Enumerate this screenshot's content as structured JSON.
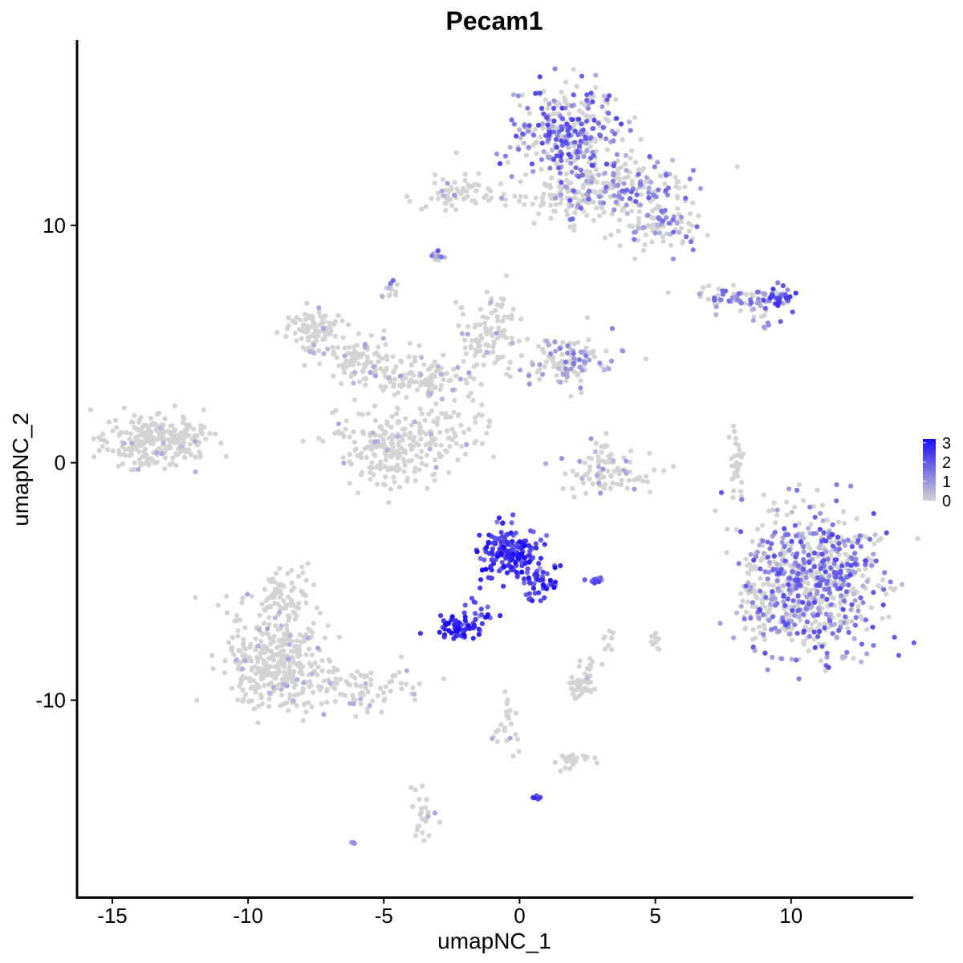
{
  "chart_data": {
    "type": "scatter",
    "title": "Pecam1",
    "xlabel": "umapNC_1",
    "ylabel": "umapNC_2",
    "xlim": [
      -16.3,
      14.5
    ],
    "ylim": [
      -18.3,
      17.8
    ],
    "x_ticks": [
      -15,
      -10,
      -5,
      0,
      5,
      10
    ],
    "x_tick_labels": [
      "-15",
      "-10",
      "-5",
      "0",
      "5",
      "10"
    ],
    "y_ticks": [
      -10,
      0,
      10
    ],
    "y_tick_labels": [
      "-10",
      "0",
      "10"
    ],
    "grid": false,
    "legend_position": "right",
    "color_scale": {
      "low": "#d3d3d3",
      "high": "#1d0cf5",
      "min": 0,
      "max": 3.2,
      "breaks": [
        0,
        1,
        2,
        3
      ],
      "break_labels": [
        "0",
        "1",
        "2",
        "3"
      ]
    },
    "clusters": [
      {
        "id": "left-blob",
        "center": [
          -13.5,
          1.0
        ],
        "spread": [
          0.9,
          0.6
        ],
        "n": 260,
        "expr": 0.02
      },
      {
        "id": "top-cluster",
        "center": [
          1.7,
          13.9
        ],
        "spread": [
          1.0,
          1.0
        ],
        "n": 320,
        "expr": 0.9
      },
      {
        "id": "top-arm-right",
        "center": [
          3.8,
          11.6
        ],
        "spread": [
          1.2,
          0.7
        ],
        "n": 180,
        "expr": 0.7
      },
      {
        "id": "top-arm-lower-right",
        "center": [
          5.2,
          10.0
        ],
        "spread": [
          0.7,
          0.5
        ],
        "n": 90,
        "expr": 0.55
      },
      {
        "id": "top-stem",
        "center": [
          1.9,
          11.1
        ],
        "spread": [
          0.6,
          0.5
        ],
        "n": 60,
        "expr": 0.15
      },
      {
        "id": "top-left-streak",
        "center": [
          -2.3,
          11.4
        ],
        "spread": [
          0.7,
          0.3
        ],
        "n": 60,
        "expr": 0.15
      },
      {
        "id": "top-left-tail",
        "center": [
          0.3,
          11.1
        ],
        "spread": [
          0.6,
          0.15
        ],
        "n": 18,
        "expr": 0.05
      },
      {
        "id": "small-islet-1",
        "center": [
          -3.0,
          8.7
        ],
        "spread": [
          0.15,
          0.12
        ],
        "n": 12,
        "expr": 0.8
      },
      {
        "id": "small-islet-2",
        "center": [
          -4.7,
          7.3
        ],
        "spread": [
          0.15,
          0.2
        ],
        "n": 14,
        "expr": 0.7
      },
      {
        "id": "right-streak",
        "center": [
          8.3,
          6.9
        ],
        "spread": [
          0.9,
          0.22
        ],
        "n": 70,
        "expr": 0.6
      },
      {
        "id": "right-streak-head",
        "center": [
          9.5,
          6.9
        ],
        "spread": [
          0.3,
          0.25
        ],
        "n": 40,
        "expr": 1.2
      },
      {
        "id": "right-streak-drop",
        "center": [
          8.9,
          6.0
        ],
        "spread": [
          0.25,
          0.2
        ],
        "n": 12,
        "expr": 0.7
      },
      {
        "id": "mid-left-top",
        "center": [
          -7.5,
          5.6
        ],
        "spread": [
          0.6,
          0.4
        ],
        "n": 90,
        "expr": 0.05
      },
      {
        "id": "mid-branch-left",
        "center": [
          -5.8,
          4.3
        ],
        "spread": [
          0.8,
          0.5
        ],
        "n": 80,
        "expr": 0.08
      },
      {
        "id": "mid-hub",
        "center": [
          -3.5,
          3.6
        ],
        "spread": [
          1.0,
          0.6
        ],
        "n": 120,
        "expr": 0.1
      },
      {
        "id": "mid-top-spike",
        "center": [
          -1.1,
          5.5
        ],
        "spread": [
          0.6,
          0.8
        ],
        "n": 100,
        "expr": 0.05
      },
      {
        "id": "mid-right-lobe",
        "center": [
          1.8,
          4.2
        ],
        "spread": [
          0.8,
          0.5
        ],
        "n": 120,
        "expr": 0.5
      },
      {
        "id": "mid-lower",
        "center": [
          -4.6,
          0.7
        ],
        "spread": [
          1.1,
          0.8
        ],
        "n": 230,
        "expr": 0.05
      },
      {
        "id": "mid-diag",
        "center": [
          -2.2,
          1.5
        ],
        "spread": [
          0.8,
          0.5
        ],
        "n": 40,
        "expr": 0.1
      },
      {
        "id": "arc-cluster",
        "center": [
          3.2,
          -0.5
        ],
        "spread": [
          1.0,
          0.4
        ],
        "n": 80,
        "expr": 0.25
      },
      {
        "id": "arc-stem",
        "center": [
          3.2,
          0.5
        ],
        "spread": [
          0.25,
          0.5
        ],
        "n": 20,
        "expr": 0.05
      },
      {
        "id": "thin-vertical",
        "center": [
          8.0,
          0.2
        ],
        "spread": [
          0.12,
          0.7
        ],
        "n": 30,
        "expr": 0.1
      },
      {
        "id": "big-right-blob",
        "center": [
          10.7,
          -5.0
        ],
        "spread": [
          1.2,
          1.5
        ],
        "n": 700,
        "expr": 0.85
      },
      {
        "id": "big-right-left-edge",
        "center": [
          8.7,
          -5.8
        ],
        "spread": [
          0.4,
          1.0
        ],
        "n": 60,
        "expr": 0.4
      },
      {
        "id": "blue-cluster",
        "center": [
          -0.4,
          -3.8
        ],
        "spread": [
          0.55,
          0.55
        ],
        "n": 170,
        "expr": 2.4
      },
      {
        "id": "blue-tail",
        "center": [
          0.8,
          -5.1
        ],
        "spread": [
          0.35,
          0.35
        ],
        "n": 45,
        "expr": 2.3
      },
      {
        "id": "blue-left-blob",
        "center": [
          -2.3,
          -6.9
        ],
        "spread": [
          0.45,
          0.25
        ],
        "n": 65,
        "expr": 2.6
      },
      {
        "id": "blue-connector",
        "center": [
          -1.5,
          -6.2
        ],
        "spread": [
          0.25,
          0.4
        ],
        "n": 15,
        "expr": 2.0
      },
      {
        "id": "blue-islet",
        "center": [
          2.7,
          -4.9
        ],
        "spread": [
          0.2,
          0.1
        ],
        "n": 10,
        "expr": 1.8
      },
      {
        "id": "blue-dot-bottom",
        "center": [
          0.6,
          -14.1
        ],
        "spread": [
          0.05,
          0.05
        ],
        "n": 5,
        "expr": 2.6
      },
      {
        "id": "lower-left-blob",
        "center": [
          -8.9,
          -8.2
        ],
        "spread": [
          0.9,
          1.2
        ],
        "n": 360,
        "expr": 0.05
      },
      {
        "id": "lower-left-upper",
        "center": [
          -8.8,
          -5.7
        ],
        "spread": [
          0.5,
          0.5
        ],
        "n": 60,
        "expr": 0.05
      },
      {
        "id": "lower-left-tail",
        "center": [
          -5.8,
          -9.5
        ],
        "spread": [
          1.2,
          0.4
        ],
        "n": 90,
        "expr": 0.06
      },
      {
        "id": "bottom-small-1",
        "center": [
          2.3,
          -9.4
        ],
        "spread": [
          0.3,
          0.25
        ],
        "n": 40,
        "expr": 0.02
      },
      {
        "id": "bottom-small-2",
        "center": [
          2.5,
          -8.5
        ],
        "spread": [
          0.15,
          0.15
        ],
        "n": 10,
        "expr": 0.02
      },
      {
        "id": "bottom-trail",
        "center": [
          -0.5,
          -11.0
        ],
        "spread": [
          0.3,
          0.7
        ],
        "n": 25,
        "expr": 0.02
      },
      {
        "id": "bottom-trail-right",
        "center": [
          2.0,
          -12.5
        ],
        "spread": [
          0.4,
          0.2
        ],
        "n": 25,
        "expr": 0.02
      },
      {
        "id": "bottom-column",
        "center": [
          -3.6,
          -14.8
        ],
        "spread": [
          0.2,
          0.6
        ],
        "n": 25,
        "expr": 0.05
      },
      {
        "id": "mid-right-small",
        "center": [
          5.0,
          -7.5
        ],
        "spread": [
          0.1,
          0.25
        ],
        "n": 10,
        "expr": 0.02
      },
      {
        "id": "mid-right-small-2",
        "center": [
          3.3,
          -7.6
        ],
        "spread": [
          0.1,
          0.3
        ],
        "n": 8,
        "expr": 0.02
      },
      {
        "id": "stray",
        "center": [
          -6.1,
          -16.0
        ],
        "spread": [
          0.05,
          0.05
        ],
        "n": 3,
        "expr": 0.3
      }
    ]
  }
}
